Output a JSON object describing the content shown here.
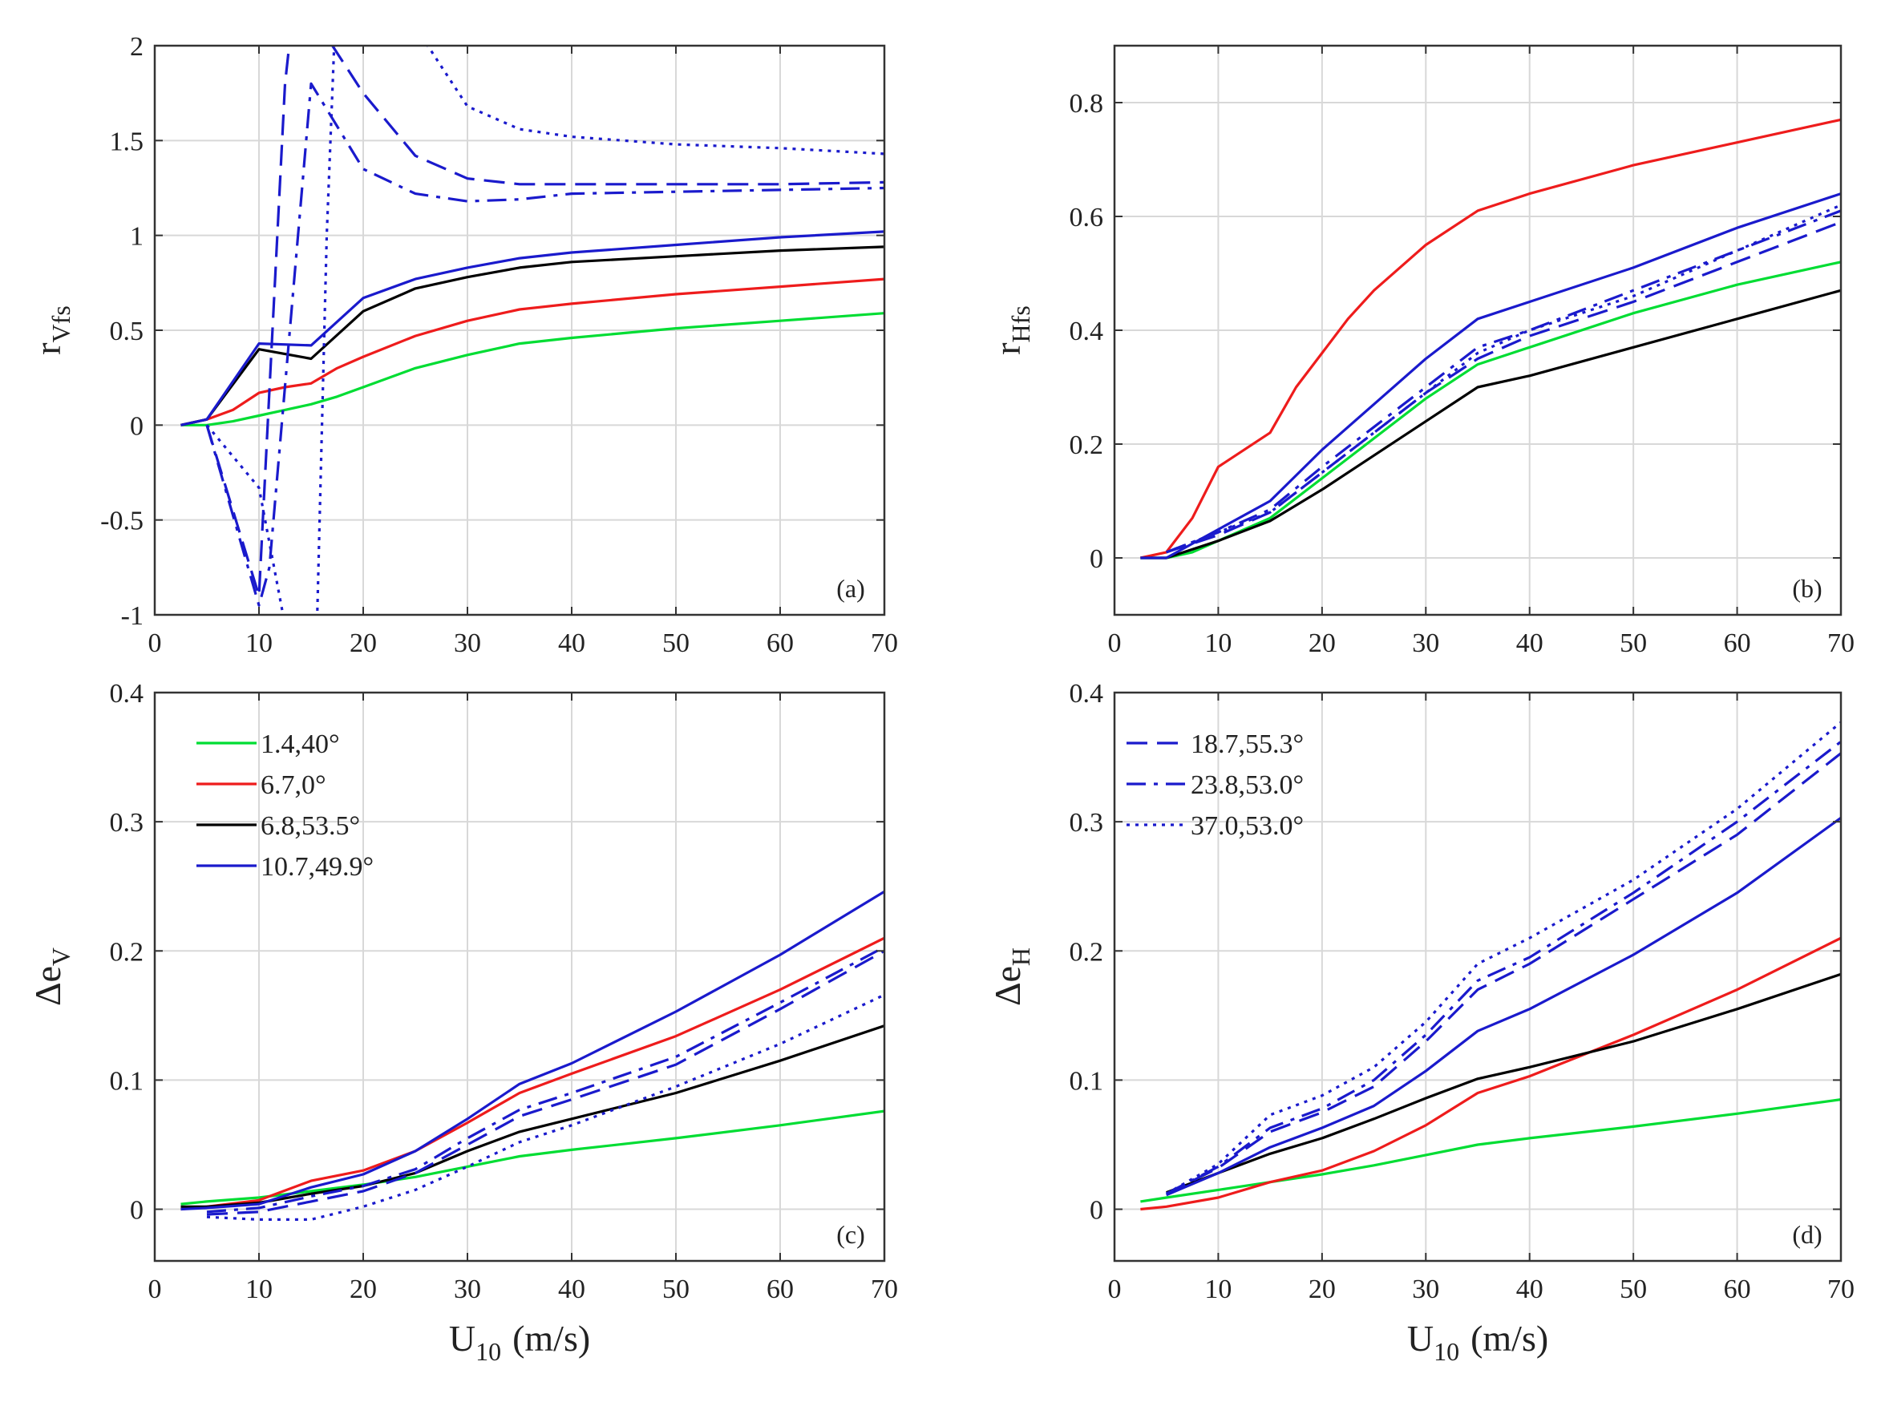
{
  "chart_data": [
    {
      "type": "line",
      "panel": "(a)",
      "ylabel": "r",
      "ylabel_sub": "Vfs",
      "xlabel": "",
      "xlabel_sub": "",
      "xlim": [
        0,
        70
      ],
      "ylim": [
        -1,
        2
      ],
      "xticks": [
        0,
        10,
        20,
        30,
        40,
        50,
        60,
        70
      ],
      "yticks": [
        -1,
        -0.5,
        0,
        0.5,
        1,
        1.5,
        2
      ],
      "grid": true,
      "series": [
        {
          "name": "1.4,40°",
          "color": "#00dd33",
          "dash": "solid",
          "x": [
            2.5,
            5,
            7.5,
            10,
            12.5,
            15,
            17.5,
            20,
            25,
            30,
            35,
            40,
            50,
            60,
            70
          ],
          "y": [
            0,
            0,
            0.02,
            0.05,
            0.08,
            0.11,
            0.15,
            0.2,
            0.3,
            0.37,
            0.43,
            0.46,
            0.51,
            0.55,
            0.59
          ]
        },
        {
          "name": "6.7,0°",
          "color": "#ee1c1c",
          "dash": "solid",
          "x": [
            2.5,
            5,
            7.5,
            10,
            12.5,
            15,
            17.5,
            20,
            25,
            30,
            35,
            40,
            50,
            60,
            70
          ],
          "y": [
            0,
            0.03,
            0.08,
            0.17,
            0.2,
            0.22,
            0.3,
            0.36,
            0.47,
            0.55,
            0.61,
            0.64,
            0.69,
            0.73,
            0.77
          ]
        },
        {
          "name": "6.8,53.5°",
          "color": "#000000",
          "dash": "solid",
          "x": [
            2.5,
            5,
            10,
            15,
            20,
            25,
            30,
            35,
            40,
            50,
            60,
            70
          ],
          "y": [
            0,
            0.03,
            0.4,
            0.35,
            0.6,
            0.72,
            0.78,
            0.83,
            0.86,
            0.89,
            0.92,
            0.94
          ]
        },
        {
          "name": "10.7,49.9°",
          "color": "#1a1acc",
          "dash": "solid",
          "x": [
            2.5,
            5,
            10,
            15,
            20,
            25,
            30,
            35,
            40,
            50,
            60,
            70
          ],
          "y": [
            0,
            0.03,
            0.43,
            0.42,
            0.67,
            0.77,
            0.83,
            0.88,
            0.91,
            0.95,
            0.99,
            1.02
          ]
        },
        {
          "name": "18.7,55.3°",
          "color": "#1a1acc",
          "dash": "dashed",
          "x": [
            5,
            10,
            12.5,
            13.5,
            20,
            25,
            30,
            35,
            40,
            50,
            60,
            70
          ],
          "y": [
            0,
            -0.9,
            1.8,
            2.3,
            1.75,
            1.42,
            1.3,
            1.27,
            1.27,
            1.27,
            1.27,
            1.28
          ]
        },
        {
          "name": "23.8,53.0°",
          "color": "#1a1acc",
          "dash": "dashdot",
          "x": [
            5,
            10,
            11,
            15,
            20,
            25,
            30,
            35,
            40,
            50,
            60,
            70
          ],
          "y": [
            0,
            -0.95,
            -0.75,
            1.8,
            1.35,
            1.22,
            1.18,
            1.19,
            1.22,
            1.23,
            1.24,
            1.25
          ]
        },
        {
          "name": "37.0,53.0°",
          "color": "#1a1acc",
          "dash": "dotted",
          "x": [
            5,
            10,
            13,
            15.5,
            16.5,
            17.5,
            25,
            30,
            35,
            40,
            50,
            60,
            70
          ],
          "y": [
            0,
            -0.33,
            -1.2,
            -1.2,
            1.0,
            2.4,
            2.1,
            1.68,
            1.56,
            1.52,
            1.48,
            1.46,
            1.43
          ]
        }
      ]
    },
    {
      "type": "line",
      "panel": "(b)",
      "ylabel": "r",
      "ylabel_sub": "Hfs",
      "xlabel": "",
      "xlabel_sub": "",
      "xlim": [
        0,
        70
      ],
      "ylim": [
        -0.1,
        0.9
      ],
      "xticks": [
        0,
        10,
        20,
        30,
        40,
        50,
        60,
        70
      ],
      "yticks": [
        0,
        0.2,
        0.4,
        0.6,
        0.8
      ],
      "grid": true,
      "series": [
        {
          "name": "1.4,40°",
          "color": "#00dd33",
          "dash": "solid",
          "x": [
            2.5,
            5,
            7.5,
            10,
            15,
            20,
            25,
            30,
            35,
            40,
            50,
            60,
            70
          ],
          "y": [
            0,
            0,
            0.01,
            0.03,
            0.07,
            0.14,
            0.21,
            0.28,
            0.34,
            0.37,
            0.43,
            0.48,
            0.52
          ]
        },
        {
          "name": "6.7,0°",
          "color": "#ee1c1c",
          "dash": "solid",
          "x": [
            2.5,
            5,
            7.5,
            10,
            12.5,
            15,
            17.5,
            20,
            22.5,
            25,
            27.5,
            30,
            35,
            40,
            50,
            60,
            70
          ],
          "y": [
            0,
            0.01,
            0.07,
            0.16,
            0.19,
            0.22,
            0.3,
            0.36,
            0.42,
            0.47,
            0.51,
            0.55,
            0.61,
            0.64,
            0.69,
            0.73,
            0.77
          ]
        },
        {
          "name": "6.8,53.5°",
          "color": "#000000",
          "dash": "solid",
          "x": [
            2.5,
            5,
            10,
            15,
            20,
            25,
            30,
            35,
            40,
            50,
            60,
            70
          ],
          "y": [
            0,
            0,
            0.03,
            0.065,
            0.12,
            0.18,
            0.24,
            0.3,
            0.32,
            0.37,
            0.42,
            0.47
          ]
        },
        {
          "name": "10.7,49.9°",
          "color": "#1a1acc",
          "dash": "solid",
          "x": [
            2.5,
            5,
            10,
            15,
            20,
            25,
            30,
            35,
            40,
            50,
            60,
            70
          ],
          "y": [
            0,
            0,
            0.05,
            0.1,
            0.19,
            0.27,
            0.35,
            0.42,
            0.45,
            0.51,
            0.58,
            0.64
          ]
        },
        {
          "name": "18.7,55.3°",
          "color": "#1a1acc",
          "dash": "dashed",
          "x": [
            5,
            10,
            15,
            20,
            25,
            30,
            35,
            40,
            50,
            60,
            70
          ],
          "y": [
            0.01,
            0.04,
            0.08,
            0.15,
            0.22,
            0.29,
            0.35,
            0.39,
            0.45,
            0.52,
            0.59
          ]
        },
        {
          "name": "23.8,53.0°",
          "color": "#1a1acc",
          "dash": "dashdot",
          "x": [
            5,
            10,
            15,
            20,
            25,
            30,
            35,
            40,
            50,
            60,
            70
          ],
          "y": [
            0.01,
            0.045,
            0.085,
            0.16,
            0.23,
            0.3,
            0.37,
            0.4,
            0.47,
            0.54,
            0.61
          ]
        },
        {
          "name": "37.0,53.0°",
          "color": "#1a1acc",
          "dash": "dotted",
          "x": [
            5,
            10,
            15,
            20,
            25,
            30,
            35,
            40,
            50,
            60,
            70
          ],
          "y": [
            0.01,
            0.045,
            0.08,
            0.15,
            0.22,
            0.29,
            0.36,
            0.4,
            0.46,
            0.54,
            0.62
          ]
        }
      ]
    },
    {
      "type": "line",
      "panel": "(c)",
      "ylabel": "Δe",
      "ylabel_sub": "V",
      "xlabel": "U",
      "xlabel_sub": "10",
      "xlabel_unit": "(m/s)",
      "xlim": [
        0,
        70
      ],
      "ylim": [
        -0.04,
        0.4
      ],
      "xticks": [
        0,
        10,
        20,
        30,
        40,
        50,
        60,
        70
      ],
      "yticks": [
        0,
        0.1,
        0.2,
        0.3,
        0.4
      ],
      "grid": true,
      "legend": "top-left",
      "series": [
        {
          "name": "1.4,40°",
          "color": "#00dd33",
          "dash": "solid",
          "x": [
            2.5,
            5,
            10,
            15,
            20,
            25,
            30,
            35,
            40,
            50,
            60,
            70
          ],
          "y": [
            0.004,
            0.006,
            0.009,
            0.014,
            0.019,
            0.025,
            0.033,
            0.041,
            0.046,
            0.055,
            0.065,
            0.076
          ]
        },
        {
          "name": "6.7,0°",
          "color": "#ee1c1c",
          "dash": "solid",
          "x": [
            2.5,
            5,
            10,
            15,
            20,
            25,
            30,
            35,
            40,
            50,
            60,
            70
          ],
          "y": [
            0,
            0.002,
            0.007,
            0.022,
            0.03,
            0.045,
            0.067,
            0.09,
            0.105,
            0.134,
            0.17,
            0.21
          ]
        },
        {
          "name": "6.8,53.5°",
          "color": "#000000",
          "dash": "solid",
          "x": [
            2.5,
            5,
            10,
            15,
            20,
            25,
            30,
            35,
            40,
            50,
            60,
            70
          ],
          "y": [
            0.002,
            0.002,
            0.005,
            0.012,
            0.018,
            0.028,
            0.045,
            0.06,
            0.07,
            0.09,
            0.115,
            0.142
          ]
        },
        {
          "name": "10.7,49.9°",
          "color": "#1a1acc",
          "dash": "solid",
          "x": [
            2.5,
            5,
            10,
            15,
            20,
            25,
            30,
            35,
            40,
            50,
            60,
            70
          ],
          "y": [
            0,
            0.001,
            0.004,
            0.017,
            0.027,
            0.045,
            0.07,
            0.097,
            0.113,
            0.153,
            0.197,
            0.246
          ]
        },
        {
          "name": "18.7,55.3°",
          "color": "#1a1acc",
          "dash": "dashed",
          "x": [
            5,
            10,
            15,
            20,
            25,
            30,
            35,
            40,
            50,
            60,
            70
          ],
          "y": [
            -0.004,
            -0.002,
            0.006,
            0.014,
            0.028,
            0.05,
            0.072,
            0.085,
            0.112,
            0.155,
            0.2
          ]
        },
        {
          "name": "23.8,53.0°",
          "color": "#1a1acc",
          "dash": "dashdot",
          "x": [
            5,
            10,
            15,
            20,
            25,
            30,
            35,
            40,
            50,
            60,
            70
          ],
          "y": [
            -0.002,
            0.001,
            0.01,
            0.018,
            0.031,
            0.055,
            0.077,
            0.09,
            0.118,
            0.16,
            0.203
          ]
        },
        {
          "name": "37.0,53.0°",
          "color": "#1a1acc",
          "dash": "dotted",
          "x": [
            5,
            10,
            15,
            20,
            25,
            30,
            35,
            40,
            50,
            60,
            70
          ],
          "y": [
            -0.006,
            -0.008,
            -0.008,
            0.002,
            0.015,
            0.033,
            0.052,
            0.065,
            0.095,
            0.128,
            0.166
          ]
        }
      ]
    },
    {
      "type": "line",
      "panel": "(d)",
      "ylabel": "Δe",
      "ylabel_sub": "H",
      "xlabel": "U",
      "xlabel_sub": "10",
      "xlabel_unit": "(m/s)",
      "xlim": [
        0,
        70
      ],
      "ylim": [
        -0.04,
        0.4
      ],
      "xticks": [
        0,
        10,
        20,
        30,
        40,
        50,
        60,
        70
      ],
      "yticks": [
        0,
        0.1,
        0.2,
        0.3,
        0.4
      ],
      "grid": true,
      "legend": "top-left",
      "series": [
        {
          "name": "1.4,40°",
          "color": "#00dd33",
          "dash": "solid",
          "x": [
            2.5,
            5,
            10,
            15,
            20,
            25,
            30,
            35,
            40,
            50,
            60,
            70
          ],
          "y": [
            0.006,
            0.009,
            0.015,
            0.021,
            0.027,
            0.034,
            0.042,
            0.05,
            0.055,
            0.064,
            0.074,
            0.085
          ]
        },
        {
          "name": "6.7,0°",
          "color": "#ee1c1c",
          "dash": "solid",
          "x": [
            2.5,
            5,
            10,
            15,
            20,
            25,
            30,
            35,
            40,
            50,
            60,
            70
          ],
          "y": [
            0,
            0.002,
            0.009,
            0.021,
            0.03,
            0.045,
            0.065,
            0.09,
            0.103,
            0.135,
            0.17,
            0.21
          ]
        },
        {
          "name": "6.8,53.5°",
          "color": "#000000",
          "dash": "solid",
          "x": [
            5,
            10,
            15,
            20,
            25,
            30,
            35,
            40,
            50,
            60,
            70
          ],
          "y": [
            0.013,
            0.028,
            0.043,
            0.055,
            0.07,
            0.086,
            0.101,
            0.11,
            0.13,
            0.155,
            0.182
          ]
        },
        {
          "name": "10.7,49.9°",
          "color": "#1a1acc",
          "dash": "solid",
          "x": [
            5,
            10,
            15,
            20,
            25,
            30,
            35,
            40,
            50,
            60,
            70
          ],
          "y": [
            0.011,
            0.028,
            0.048,
            0.063,
            0.08,
            0.107,
            0.138,
            0.155,
            0.197,
            0.245,
            0.303
          ]
        },
        {
          "name": "18.7,55.3°",
          "color": "#1a1acc",
          "dash": "dashed",
          "x": [
            5,
            10,
            15,
            20,
            25,
            30,
            35,
            40,
            50,
            60,
            70
          ],
          "y": [
            0.012,
            0.032,
            0.06,
            0.075,
            0.095,
            0.13,
            0.17,
            0.19,
            0.24,
            0.29,
            0.353
          ]
        },
        {
          "name": "23.8,53.0°",
          "color": "#1a1acc",
          "dash": "dashdot",
          "x": [
            5,
            10,
            15,
            20,
            25,
            30,
            35,
            40,
            50,
            60,
            70
          ],
          "y": [
            0.012,
            0.033,
            0.063,
            0.078,
            0.1,
            0.135,
            0.177,
            0.195,
            0.245,
            0.3,
            0.362
          ]
        },
        {
          "name": "37.0,53.0°",
          "color": "#1a1acc",
          "dash": "dotted",
          "x": [
            5,
            10,
            15,
            20,
            25,
            30,
            35,
            40,
            50,
            60,
            70
          ],
          "y": [
            0.012,
            0.035,
            0.073,
            0.088,
            0.11,
            0.145,
            0.19,
            0.21,
            0.255,
            0.31,
            0.377
          ]
        }
      ]
    }
  ],
  "legends": {
    "panel_c": [
      "1.4,40°",
      "6.7,0°",
      "6.8,53.5°",
      "10.7,49.9°"
    ],
    "panel_d": [
      "18.7,55.3°",
      "23.8,53.0°",
      "37.0,53.0°"
    ]
  }
}
